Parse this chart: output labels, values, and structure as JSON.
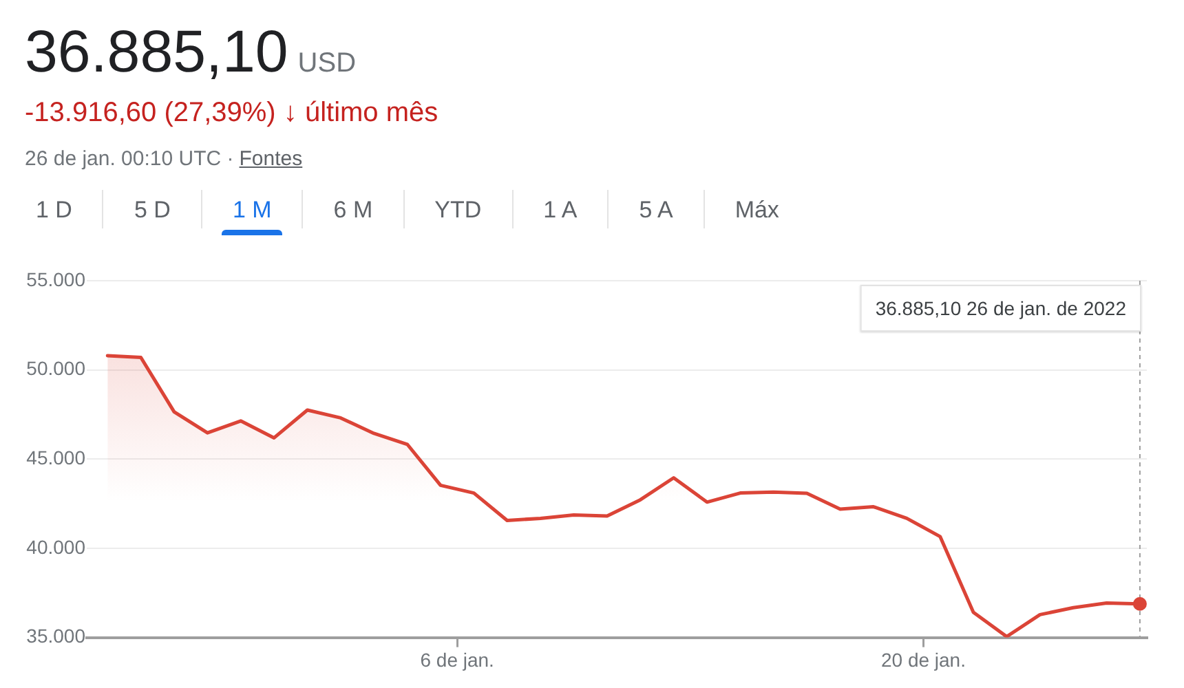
{
  "chart_data": {
    "type": "area",
    "title": "36.885,10 USD",
    "subtitle": "-13.916,60 (27,39%) ↓ último mês",
    "annotations": [
      "26 de jan. 00:10 UTC ·",
      "Fontes",
      "1 D",
      "5 D",
      "1 M",
      "6 M",
      "YTD",
      "1 A",
      "5 A",
      "Máx",
      "36.885,10 26 de jan. de 2022"
    ],
    "x": [
      "2021-12-26T12:00",
      "2021-12-27T12:00",
      "2021-12-28T12:00",
      "2021-12-29T12:00",
      "2021-12-30T12:00",
      "2021-12-31T12:00",
      "2022-01-01T12:00",
      "2022-01-02T12:00",
      "2022-01-03T12:00",
      "2022-01-04T12:00",
      "2022-01-05T12:00",
      "2022-01-06T12:00",
      "2022-01-07T12:00",
      "2022-01-08T12:00",
      "2022-01-09T12:00",
      "2022-01-10T12:00",
      "2022-01-11T12:00",
      "2022-01-12T12:00",
      "2022-01-13T12:00",
      "2022-01-14T12:00",
      "2022-01-15T12:00",
      "2022-01-16T12:00",
      "2022-01-17T12:00",
      "2022-01-18T12:00",
      "2022-01-19T12:00",
      "2022-01-20T12:00",
      "2022-01-21T12:00",
      "2022-01-22T12:00",
      "2022-01-23T12:00",
      "2022-01-24T12:00",
      "2022-01-25T12:00",
      "2022-01-26T12:00"
    ],
    "series": [
      {
        "color": "#db4437",
        "values": [
          50800,
          50700,
          47650,
          46470,
          47140,
          46190,
          47750,
          47310,
          46440,
          45830,
          43530,
          43100,
          41560,
          41680,
          41870,
          41810,
          42720,
          43950,
          42590,
          43100,
          43150,
          43080,
          42200,
          42330,
          41680,
          40660,
          36410,
          35050,
          36280,
          36670,
          36930,
          36885.1
        ]
      },
      {
        "type": "scatter",
        "color": "#db4437",
        "x": [
          "2022-01-26T12:00"
        ],
        "values": [
          36885.1
        ]
      }
    ],
    "xlim": [
      "2021-12-25T21:00",
      "2022-01-26T17:00"
    ],
    "xticks": [
      {
        "value": "2022-01-06",
        "label": "6 de jan."
      },
      {
        "value": "2022-01-20",
        "label": "20 de jan."
      }
    ],
    "ylim": [
      35000,
      55000
    ],
    "yticks": [
      {
        "value": 35000,
        "label": "35.000"
      },
      {
        "value": 40000,
        "label": "40.000"
      },
      {
        "value": 45000,
        "label": "45.000"
      },
      {
        "value": 50000,
        "label": "50.000"
      },
      {
        "value": 55000,
        "label": "55.000"
      }
    ],
    "grid": "y",
    "ref_lines": [
      {
        "axis": "x",
        "value": "2022-01-26T12:00",
        "line_style": "dashed",
        "color": "#9e9e9e"
      }
    ]
  }
}
